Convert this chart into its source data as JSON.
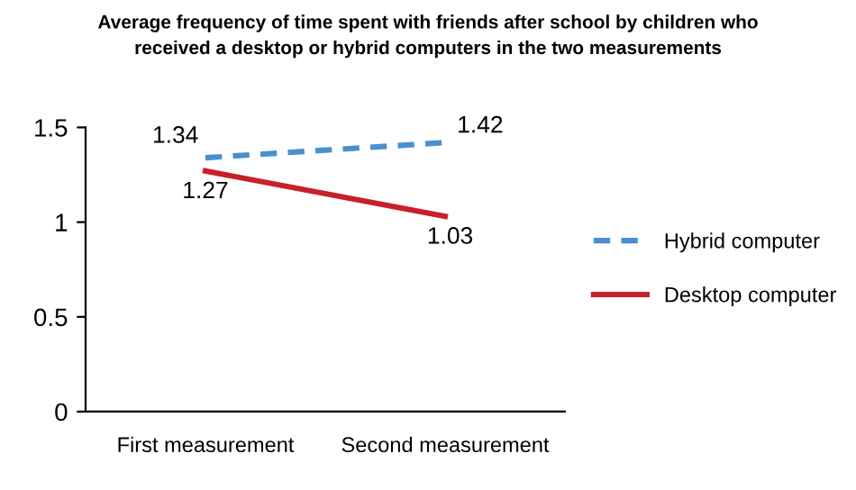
{
  "chart_data": {
    "type": "line",
    "title": "Average frequency of time spent with friends after school by children who\nreceived a desktop or hybrid computers in the two measurements",
    "categories": [
      "First measurement",
      "Second measurement"
    ],
    "series": [
      {
        "name": "Hybrid computer",
        "color": "#4a8fd0",
        "values": [
          1.34,
          1.42
        ],
        "line_style": "dashed"
      },
      {
        "name": "Desktop computer",
        "color": "#c8202a",
        "values": [
          1.27,
          1.03
        ],
        "line_style": "solid"
      }
    ],
    "ylim": [
      0,
      1.5
    ],
    "yticks": [
      0,
      0.5,
      1,
      1.5
    ],
    "grid": false,
    "legend": "right",
    "data_labels": true,
    "marker": "none"
  }
}
